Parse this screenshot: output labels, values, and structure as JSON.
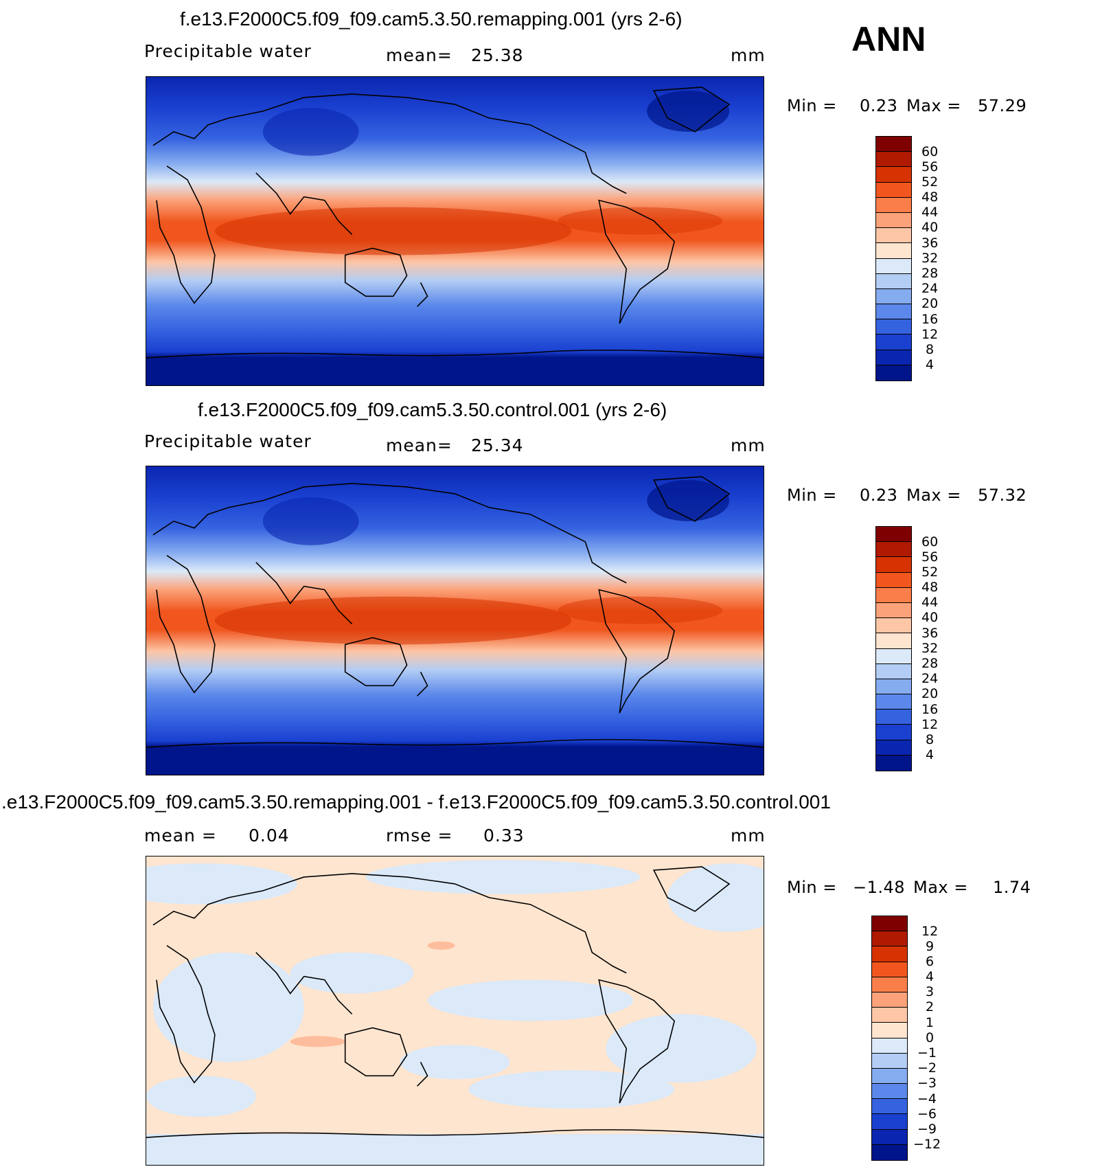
{
  "season": "ANN",
  "panels": [
    {
      "title": "f.e13.F2000C5.f09_f09.cam5.3.50.remapping.001 (yrs 2-6)",
      "left_label": "Precipitable water",
      "center_label": "mean=",
      "center_value": "25.38",
      "units": "mm",
      "min_label": "Min =",
      "min_value": "0.23",
      "max_label": "Max =",
      "max_value": "57.29",
      "colorbar_labels": [
        "60",
        "56",
        "52",
        "48",
        "44",
        "40",
        "36",
        "32",
        "28",
        "24",
        "20",
        "16",
        "12",
        "8",
        "4"
      ]
    },
    {
      "title": "f.e13.F2000C5.f09_f09.cam5.3.50.control.001 (yrs 2-6)",
      "left_label": "Precipitable water",
      "center_label": "mean=",
      "center_value": "25.34",
      "units": "mm",
      "min_label": "Min =",
      "min_value": "0.23",
      "max_label": "Max =",
      "max_value": "57.32",
      "colorbar_labels": [
        "60",
        "56",
        "52",
        "48",
        "44",
        "40",
        "36",
        "32",
        "28",
        "24",
        "20",
        "16",
        "12",
        "8",
        "4"
      ]
    },
    {
      "title": ".e13.F2000C5.f09_f09.cam5.3.50.remapping.001 - f.e13.F2000C5.f09_f09.cam5.3.50.control.001",
      "left_label": "mean =",
      "left_value": "0.04",
      "center_label": "rmse =",
      "center_value": "0.33",
      "units": "mm",
      "min_label": "Min =",
      "min_value": "−1.48",
      "max_label": "Max =",
      "max_value": "1.74",
      "colorbar_labels": [
        "12",
        "9",
        "6",
        "4",
        "3",
        "2",
        "1",
        "0",
        "−1",
        "−2",
        "−3",
        "−4",
        "−6",
        "−9",
        "−12"
      ]
    }
  ],
  "colors": {
    "field_scale": [
      "#7f0000",
      "#b01a00",
      "#d63300",
      "#f0561e",
      "#fa7e4a",
      "#fca27a",
      "#fdc6a6",
      "#fee5cf",
      "#dbe9f8",
      "#b3cdf4",
      "#86acf0",
      "#5b88ea",
      "#3563e0",
      "#1a40d0",
      "#0a26b0",
      "#00158a"
    ],
    "diff_scale": [
      "#7f0000",
      "#b01a00",
      "#d63300",
      "#f0561e",
      "#fa7e4a",
      "#fca27a",
      "#fdc6a6",
      "#fee5cf",
      "#dbe9f8",
      "#b3cdf4",
      "#86acf0",
      "#5b88ea",
      "#3563e0",
      "#1a40d0",
      "#0a26b0",
      "#00158a"
    ]
  }
}
